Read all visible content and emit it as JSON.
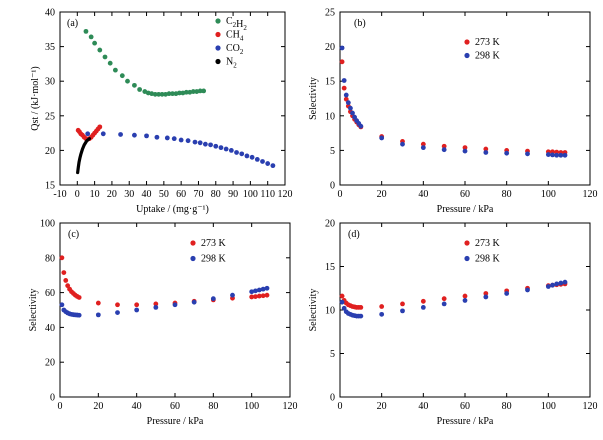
{
  "chart_data": [
    {
      "type": "scatter",
      "panel_tag": "(a)",
      "xlabel": "Uptake / (mg·g⁻¹)",
      "ylabel": "Qst / (kJ·mol⁻¹)",
      "xlim": [
        -10,
        120
      ],
      "ylim": [
        15,
        40
      ],
      "xticks": [
        -10,
        0,
        10,
        20,
        30,
        40,
        50,
        60,
        70,
        80,
        90,
        100,
        110,
        120
      ],
      "yticks": [
        15,
        20,
        25,
        30,
        35,
        40
      ],
      "legend_position": "top-right",
      "series": [
        {
          "name": "C2H2",
          "legend_base": "C",
          "legend_sub1": "2",
          "legend_mid": "H",
          "legend_sub2": "2",
          "color": "#2e8b57",
          "x": [
            5,
            8,
            10,
            13,
            16,
            19,
            22,
            26,
            29,
            33,
            36,
            39,
            41,
            43,
            45,
            47,
            49,
            51,
            53,
            55,
            57,
            59,
            61,
            63,
            65,
            67,
            69,
            71,
            73
          ],
          "y": [
            37.2,
            36.4,
            35.5,
            34.5,
            33.5,
            32.6,
            31.6,
            30.8,
            30.0,
            29.4,
            28.8,
            28.5,
            28.3,
            28.2,
            28.1,
            28.1,
            28.1,
            28.1,
            28.2,
            28.2,
            28.2,
            28.3,
            28.3,
            28.4,
            28.4,
            28.5,
            28.5,
            28.6,
            28.6
          ]
        },
        {
          "name": "CH4",
          "legend_base": "CH",
          "legend_sub1": "4",
          "legend_mid": "",
          "legend_sub2": "",
          "color": "#e02020",
          "x": [
            0.5,
            1.2,
            2.0,
            3.0,
            4.0,
            5.0,
            6.0,
            7.0,
            8.0,
            9.0,
            10.0,
            11.0,
            12.0,
            13.0
          ],
          "y": [
            22.9,
            22.7,
            22.4,
            22.2,
            21.9,
            21.7,
            21.6,
            21.7,
            21.9,
            22.2,
            22.5,
            22.8,
            23.1,
            23.4
          ]
        },
        {
          "name": "CO2",
          "legend_base": "CO",
          "legend_sub1": "2",
          "legend_mid": "",
          "legend_sub2": "",
          "color": "#2a3fb0",
          "x": [
            6,
            15,
            25,
            33,
            40,
            46,
            52,
            56,
            60,
            64,
            68,
            71,
            74,
            77,
            80,
            83,
            86,
            89,
            92,
            95,
            98,
            101,
            104,
            107,
            110,
            113
          ],
          "y": [
            22.4,
            22.4,
            22.3,
            22.2,
            22.1,
            21.9,
            21.8,
            21.7,
            21.5,
            21.4,
            21.2,
            21.1,
            20.9,
            20.8,
            20.6,
            20.4,
            20.2,
            20.0,
            19.7,
            19.5,
            19.2,
            19.0,
            18.7,
            18.4,
            18.1,
            17.8
          ]
        },
        {
          "name": "N2",
          "legend_base": "N",
          "legend_sub1": "2",
          "legend_mid": "",
          "legend_sub2": "",
          "color": "#000000",
          "line": true,
          "x": [
            0.2,
            0.6,
            1.0,
            1.5,
            2.0,
            2.5,
            3.0,
            3.5,
            4.0,
            4.5,
            5.0,
            5.5,
            6.0,
            6.5,
            7.0
          ],
          "y": [
            16.8,
            17.6,
            18.3,
            18.9,
            19.4,
            19.8,
            20.2,
            20.5,
            20.8,
            21.0,
            21.2,
            21.4,
            21.5,
            21.6,
            21.7
          ]
        }
      ]
    },
    {
      "type": "scatter",
      "panel_tag": "(b)",
      "xlabel": "Pressure / kPa",
      "ylabel": "Selectivity",
      "xlim": [
        0,
        120
      ],
      "ylim": [
        0,
        25
      ],
      "xticks": [
        0,
        20,
        40,
        60,
        80,
        100,
        120
      ],
      "yticks": [
        0,
        5,
        10,
        15,
        20,
        25
      ],
      "legend_position": "top-right",
      "series": [
        {
          "name": "273 K",
          "color": "#e02020",
          "x": [
            1,
            2,
            3,
            4,
            5,
            6,
            7,
            8,
            9,
            10,
            20,
            30,
            40,
            50,
            60,
            70,
            80,
            90,
            100,
            102,
            104,
            106,
            108
          ],
          "y": [
            17.8,
            14.0,
            12.4,
            11.4,
            10.6,
            10.0,
            9.5,
            9.1,
            8.7,
            8.4,
            7.0,
            6.3,
            5.9,
            5.6,
            5.4,
            5.2,
            5.0,
            4.9,
            4.8,
            4.8,
            4.75,
            4.7,
            4.7
          ]
        },
        {
          "name": "298 K",
          "color": "#2a3fb0",
          "x": [
            1,
            2,
            3,
            4,
            5,
            6,
            7,
            8,
            9,
            10,
            20,
            30,
            40,
            50,
            60,
            70,
            80,
            90,
            100,
            102,
            104,
            106,
            108
          ],
          "y": [
            19.8,
            15.1,
            13.0,
            11.9,
            11.1,
            10.4,
            9.8,
            9.3,
            8.9,
            8.5,
            6.8,
            5.9,
            5.4,
            5.1,
            4.9,
            4.7,
            4.6,
            4.5,
            4.4,
            4.35,
            4.3,
            4.3,
            4.3
          ]
        }
      ]
    },
    {
      "type": "scatter",
      "panel_tag": "(c)",
      "xlabel": "Pressure / kPa",
      "ylabel": "Selectivity",
      "xlim": [
        0,
        120
      ],
      "ylim": [
        0,
        100
      ],
      "xticks": [
        0,
        20,
        40,
        60,
        80,
        100,
        120
      ],
      "yticks": [
        0,
        20,
        40,
        60,
        80,
        100
      ],
      "legend_position": "top-right",
      "series": [
        {
          "name": "273 K",
          "color": "#e02020",
          "x": [
            1,
            2,
            3,
            4,
            5,
            6,
            7,
            8,
            9,
            10,
            20,
            30,
            40,
            50,
            60,
            70,
            80,
            90,
            100,
            102,
            104,
            106,
            108
          ],
          "y": [
            80,
            71.5,
            67,
            64,
            62,
            60.5,
            59.5,
            58.5,
            57.8,
            57.2,
            54,
            53,
            53,
            53.5,
            54,
            55,
            55.8,
            56.8,
            57.5,
            57.7,
            58,
            58.2,
            58.5
          ]
        },
        {
          "name": "298 K",
          "color": "#2a3fb0",
          "x": [
            1,
            2,
            3,
            4,
            5,
            6,
            7,
            8,
            9,
            10,
            20,
            30,
            40,
            50,
            60,
            70,
            80,
            90,
            100,
            102,
            104,
            106,
            108
          ],
          "y": [
            53,
            50,
            49,
            48.3,
            47.8,
            47.5,
            47.3,
            47.2,
            47.1,
            47,
            47.2,
            48.5,
            50,
            51.5,
            53,
            54.5,
            56.5,
            58.5,
            60.5,
            61,
            61.5,
            62,
            62.5
          ]
        }
      ]
    },
    {
      "type": "scatter",
      "panel_tag": "(d)",
      "xlabel": "Pressure / kPa",
      "ylabel": "Selectivity",
      "xlim": [
        0,
        120
      ],
      "ylim": [
        0,
        20
      ],
      "xticks": [
        0,
        20,
        40,
        60,
        80,
        100,
        120
      ],
      "yticks": [
        0,
        5,
        10,
        15,
        20
      ],
      "legend_position": "top-right",
      "series": [
        {
          "name": "273 K",
          "color": "#e02020",
          "x": [
            1,
            2,
            3,
            4,
            5,
            6,
            7,
            8,
            9,
            10,
            20,
            30,
            40,
            50,
            60,
            70,
            80,
            90,
            100,
            102,
            104,
            106,
            108
          ],
          "y": [
            11.6,
            11.1,
            10.8,
            10.6,
            10.5,
            10.4,
            10.35,
            10.3,
            10.3,
            10.3,
            10.4,
            10.7,
            11.0,
            11.3,
            11.6,
            11.9,
            12.2,
            12.5,
            12.8,
            12.85,
            12.9,
            12.95,
            13.0
          ]
        },
        {
          "name": "298 K",
          "color": "#2a3fb0",
          "x": [
            1,
            2,
            3,
            4,
            5,
            6,
            7,
            8,
            9,
            10,
            20,
            30,
            40,
            50,
            60,
            70,
            80,
            90,
            100,
            102,
            104,
            106,
            108
          ],
          "y": [
            10.9,
            10.2,
            9.8,
            9.6,
            9.5,
            9.4,
            9.35,
            9.3,
            9.3,
            9.3,
            9.5,
            9.9,
            10.3,
            10.7,
            11.1,
            11.5,
            11.9,
            12.3,
            12.7,
            12.85,
            13.0,
            13.1,
            13.2
          ]
        }
      ]
    }
  ]
}
